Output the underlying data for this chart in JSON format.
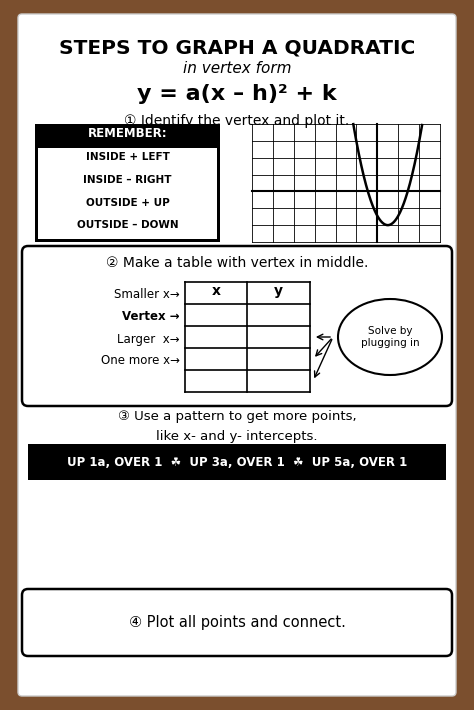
{
  "bg_color": "#7B4F2E",
  "paper_color": "#FFFFFF",
  "title_line1": "STEPS TO GRAPH A QUADRATIC",
  "title_line2": "in vertex form",
  "equation": "y = a(x – h)² + k",
  "step1_text": "① Identify the vertex and plot it.",
  "remember_title": "REMEMBER:",
  "remember_lines": [
    "INSIDE + LEFT",
    "INSIDE – RIGHT",
    "OUTSIDE + UP",
    "OUTSIDE – DOWN"
  ],
  "step2_text": "② Make a table with vertex in middle.",
  "table_rows": [
    "Smaller x→",
    "Vertex →",
    "Larger  x→",
    "One more x→"
  ],
  "table_headers": [
    "x",
    "y"
  ],
  "solve_text": "Solve by\nplugging in",
  "step3_line1": "③ Use a pattern to get more points,",
  "step3_line2": "like x- and y- intercepts.",
  "pattern_text": "UP 1a, OVER 1  ☘  UP 3a, OVER 1  ☘  UP 5a, OVER 1",
  "step4_text": "④ Plot all points and connect."
}
